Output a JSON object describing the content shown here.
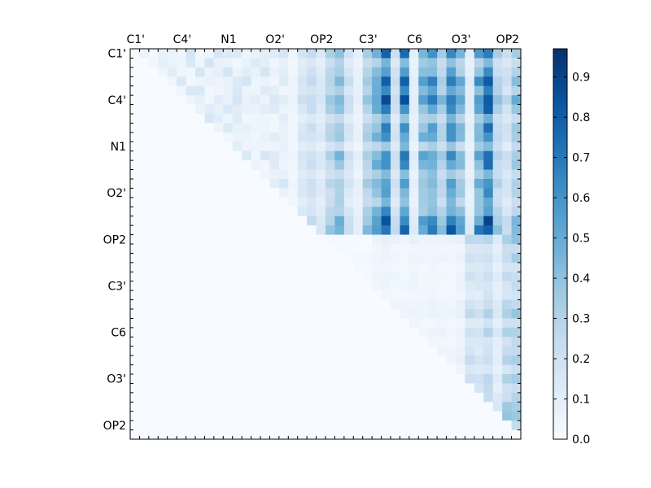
{
  "chart_data": {
    "type": "heatmap",
    "title": "",
    "xlabel": "",
    "ylabel": "",
    "grid": false,
    "n": 42,
    "tick_every": 5,
    "x_ticks": [
      "C1'",
      "C4'",
      "N1",
      "O2'",
      "OP2",
      "C3'",
      "C6",
      "O3'",
      "OP2"
    ],
    "y_ticks": [
      "C1'",
      "C4'",
      "N1",
      "O2'",
      "OP2",
      "C3'",
      "C6",
      "O3'",
      "OP2"
    ],
    "colormap": "Blues",
    "colormap_stops": [
      "#f7fbff",
      "#deebf7",
      "#c6dbef",
      "#9ecae1",
      "#6baed6",
      "#4292c6",
      "#2171b5",
      "#08519c",
      "#08306b"
    ],
    "vmin": 0.0,
    "vmax": 0.97,
    "colorbar": {
      "ticks": [
        "0.0",
        "0.1",
        "0.2",
        "0.3",
        "0.4",
        "0.5",
        "0.6",
        "0.7",
        "0.8",
        "0.9"
      ],
      "tick_values": [
        0.0,
        0.1,
        0.2,
        0.3,
        0.4,
        0.5,
        0.6,
        0.7,
        0.8,
        0.9
      ]
    },
    "block_a_column_values": [
      0.05,
      0.2,
      0.26,
      0.18,
      0.36,
      0.5,
      0.22,
      0.1,
      0.42,
      0.58,
      0.82,
      0.24,
      0.78,
      0.12,
      0.56,
      0.66,
      0.4,
      0.74,
      0.52,
      0.12,
      0.62,
      0.88,
      0.36,
      0.24,
      0.44
    ],
    "block_a_row_factors": [
      0.85,
      0.55,
      0.7,
      0.9,
      0.75,
      1.0,
      0.8,
      0.55,
      0.75,
      0.75,
      0.5,
      0.85,
      0.75,
      0.55,
      0.75,
      0.65,
      0.55,
      0.7,
      0.9,
      1.0
    ],
    "block_b_column_values": [
      0.06,
      0.08,
      0.06,
      0.05,
      0.07,
      0.05,
      0.06,
      0.06,
      0.05,
      0.08,
      0.25,
      0.22,
      0.3,
      0.15,
      0.32,
      0.36
    ],
    "block_b_row_factors": [
      1.0,
      0.6,
      0.8,
      0.5,
      0.7,
      0.6,
      0.5,
      0.8,
      0.9,
      0.6,
      0.9,
      0.6,
      0.7,
      0.8,
      0.6,
      0.9,
      0.7,
      0.8,
      1.0,
      1.0,
      0.6,
      0.9
    ]
  }
}
